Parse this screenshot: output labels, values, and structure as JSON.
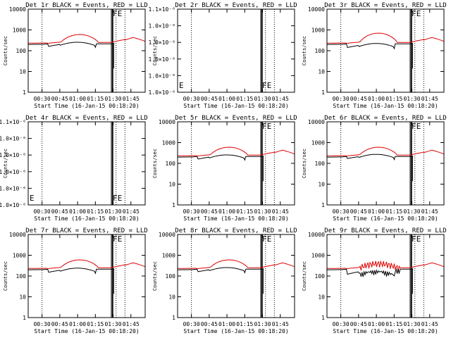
{
  "figure": {
    "xlabel": "Start Time (16-Jan-15 00:18:20)",
    "ylabel": "Counts/sec",
    "x_tick_labels": [
      "00:30",
      "00:45",
      "01:00",
      "01:15",
      "01:30",
      "01:45"
    ],
    "legend_F": "F",
    "legend_E": "E",
    "colors": {
      "events": "#000000",
      "lld": "#e00000",
      "axes": "#000000"
    }
  },
  "chart_data": [
    {
      "type": "line",
      "title": "Det 1r BLACK = Events, RED = LLD",
      "scale": "log",
      "ylim": [
        1,
        10000
      ],
      "y_tick_labels": [
        "1",
        "10",
        "100",
        "1000",
        "10000"
      ],
      "shape": "normal",
      "events_level": 160,
      "lld_peak": 600
    },
    {
      "type": "line",
      "title": "Det 2r BLACK = Events, RED = LLD",
      "scale": "empty",
      "ylim": [
        1e-06,
        1.1e-06
      ],
      "y_tick_labels": [
        "1.0×10⁻⁶",
        "1.0×10⁻⁶",
        "1.0×10⁻⁶",
        "1.0×10⁻⁶",
        "1.0×10⁻⁶",
        "1.1×10⁻⁶"
      ],
      "shape": "none"
    },
    {
      "type": "line",
      "title": "Det 3r BLACK = Events, RED = LLD",
      "scale": "log",
      "ylim": [
        1,
        10000
      ],
      "y_tick_labels": [
        "1",
        "10",
        "100",
        "1000",
        "10000"
      ],
      "shape": "normal",
      "events_level": 140,
      "lld_peak": 700
    },
    {
      "type": "line",
      "title": "Det 4r BLACK = Events, RED = LLD",
      "scale": "empty",
      "ylim": [
        1e-06,
        1.1e-06
      ],
      "y_tick_labels": [
        "1.0×10⁻⁶",
        "1.0×10⁻⁶",
        "1.0×10⁻⁶",
        "1.0×10⁻⁶",
        "1.0×10⁻⁶",
        "1.1×10⁻⁶"
      ],
      "shape": "none"
    },
    {
      "type": "line",
      "title": "Det 5r BLACK = Events, RED = LLD",
      "scale": "log",
      "ylim": [
        1,
        10000
      ],
      "y_tick_labels": [
        "1",
        "10",
        "100",
        "1000",
        "10000"
      ],
      "shape": "normal",
      "events_level": 160,
      "lld_peak": 600
    },
    {
      "type": "line",
      "title": "Det 6r BLACK = Events, RED = LLD",
      "scale": "log",
      "ylim": [
        1,
        10000
      ],
      "y_tick_labels": [
        "1",
        "10",
        "100",
        "1000",
        "10000"
      ],
      "shape": "normal",
      "events_level": 170,
      "lld_peak": 600
    },
    {
      "type": "line",
      "title": "Det 7r BLACK = Events, RED = LLD",
      "scale": "log",
      "ylim": [
        1,
        10000
      ],
      "y_tick_labels": [
        "1",
        "10",
        "100",
        "1000",
        "10000"
      ],
      "shape": "normal",
      "events_level": 150,
      "lld_peak": 600
    },
    {
      "type": "line",
      "title": "Det 8r BLACK = Events, RED = LLD",
      "scale": "log",
      "ylim": [
        1,
        10000
      ],
      "y_tick_labels": [
        "1",
        "10",
        "100",
        "1000",
        "10000"
      ],
      "shape": "normal",
      "events_level": 160,
      "lld_peak": 600
    },
    {
      "type": "line",
      "title": "Det 9r BLACK = Events, RED = LLD",
      "scale": "log",
      "ylim": [
        1,
        10000
      ],
      "y_tick_labels": [
        "1",
        "10",
        "100",
        "1000",
        "10000"
      ],
      "shape": "noisy",
      "events_level": 120,
      "lld_peak": 400
    }
  ]
}
